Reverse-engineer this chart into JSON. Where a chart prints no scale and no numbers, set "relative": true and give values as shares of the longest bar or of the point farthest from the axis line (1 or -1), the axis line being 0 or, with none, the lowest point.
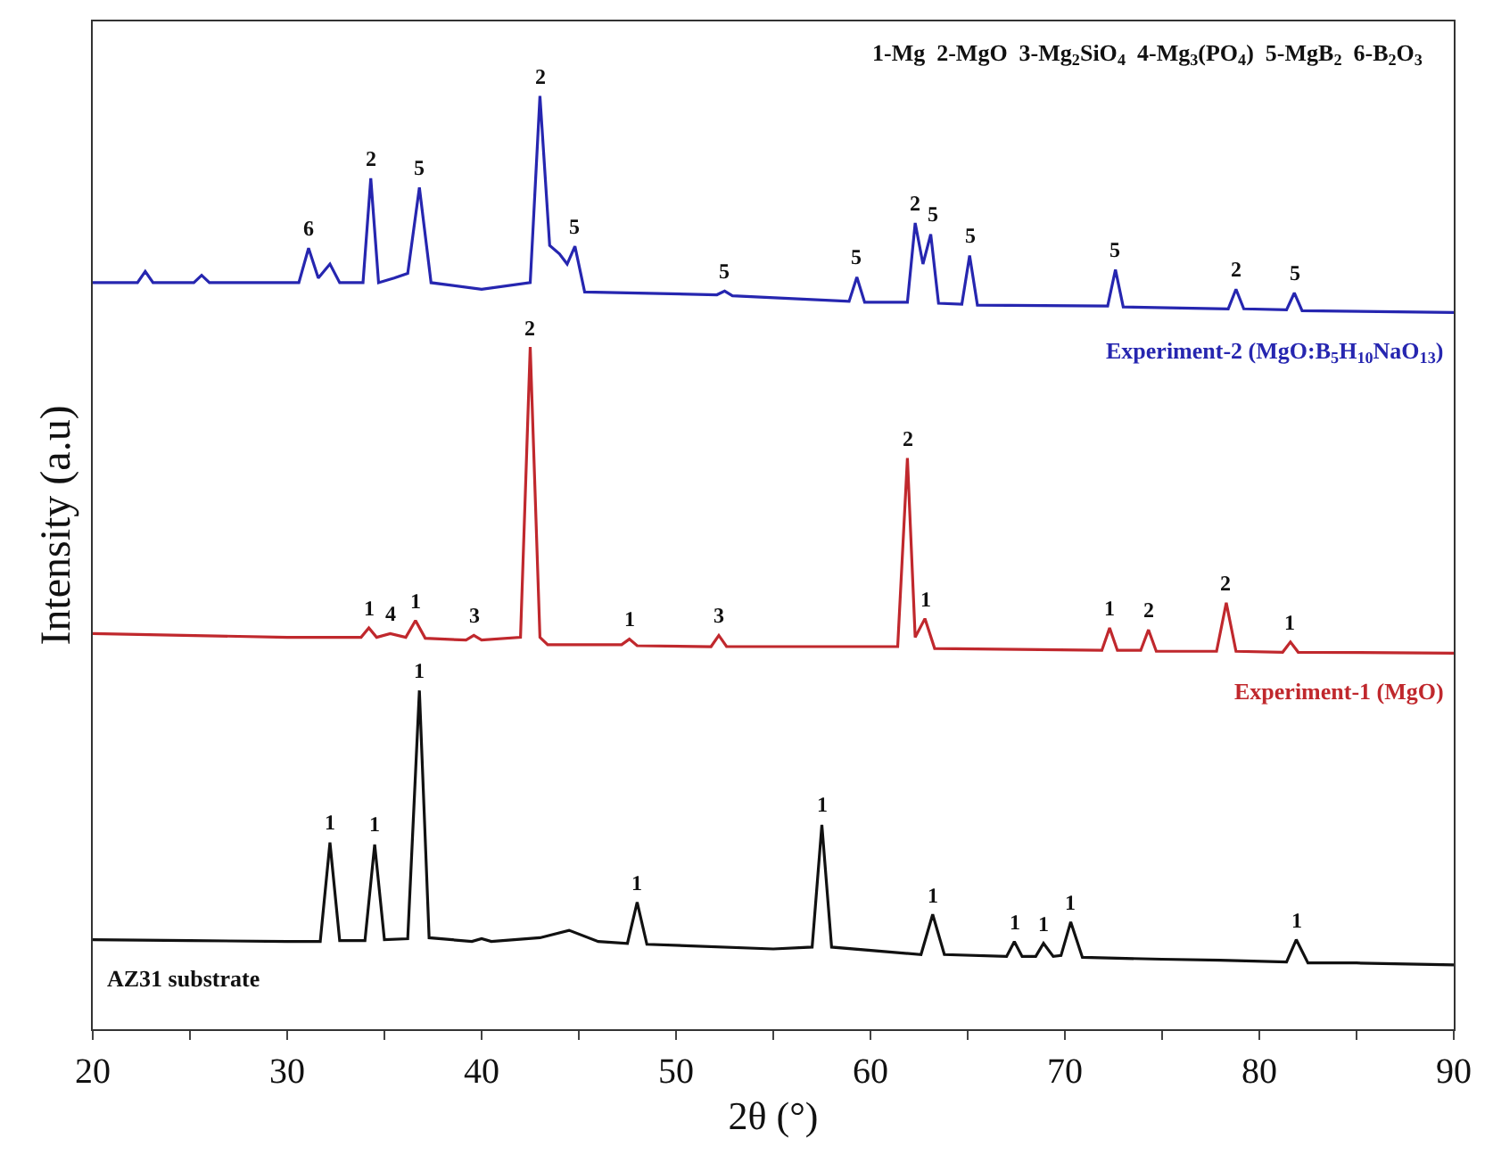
{
  "chart_data": {
    "type": "line",
    "relative": true,
    "xlabel": "2θ (°)",
    "ylabel": "Intensity (a.u)",
    "xlim": [
      20,
      90
    ],
    "xticks": [
      20,
      {
        "value": 25,
        "label": null
      },
      30,
      {
        "value": 35,
        "label": null
      },
      40,
      {
        "value": 45,
        "label": null
      },
      50,
      {
        "value": 55,
        "label": null
      },
      60,
      {
        "value": 65,
        "label": null
      },
      70,
      {
        "value": 75,
        "label": null
      },
      80,
      {
        "value": 85,
        "label": null
      },
      90
    ],
    "grid": false,
    "legend": false,
    "marker": "none",
    "line_style": "solid",
    "series": [
      {
        "name": "Experiment-2 (MgO:B$_{5}$H$_{10}$NaO$_{13}$)",
        "color": "#2626b0",
        "x": [
          20,
          22.3,
          22.7,
          23.1,
          25.2,
          25.6,
          26,
          30.6,
          31.1,
          31.6,
          32.2,
          32.7,
          33.9,
          34.3,
          34.7,
          35.5,
          36.2,
          36.8,
          37.4,
          40,
          42.5,
          43.0,
          43.5,
          44.0,
          44.4,
          44.8,
          45.3,
          52.1,
          52.5,
          52.9,
          58.9,
          59.3,
          59.7,
          61.9,
          62.3,
          62.7,
          63.1,
          63.5,
          64.7,
          65.1,
          65.5,
          72.2,
          72.6,
          73.0,
          78.4,
          78.8,
          79.2,
          81.4,
          81.8,
          82.2,
          90
        ],
        "values": [
          0.8,
          0.8,
          0.812,
          0.8,
          0.8,
          0.808,
          0.8,
          0.8,
          0.837,
          0.805,
          0.82,
          0.8,
          0.8,
          0.912,
          0.8,
          0.805,
          0.81,
          0.902,
          0.8,
          0.793,
          0.8,
          1.0,
          0.84,
          0.831,
          0.82,
          0.839,
          0.79,
          0.787,
          0.791,
          0.786,
          0.78,
          0.806,
          0.779,
          0.779,
          0.864,
          0.82,
          0.852,
          0.778,
          0.777,
          0.829,
          0.776,
          0.775,
          0.814,
          0.774,
          0.772,
          0.793,
          0.772,
          0.771,
          0.789,
          0.77,
          0.768
        ]
      },
      {
        "name": "Experiment-1 (MgO)",
        "color": "#c0282d",
        "x": [
          20,
          30,
          33.8,
          34.2,
          34.6,
          35.3,
          36.1,
          36.6,
          37.1,
          39.2,
          39.6,
          40.0,
          42.0,
          42.5,
          43.0,
          43.4,
          47.2,
          47.6,
          48.0,
          51.8,
          52.2,
          52.6,
          61.4,
          61.9,
          62.3,
          62.8,
          63.3,
          71.9,
          72.3,
          72.7,
          73.9,
          74.3,
          74.7,
          77.8,
          78.3,
          78.8,
          81.2,
          81.6,
          82.0,
          90
        ],
        "values": [
          0.424,
          0.42,
          0.42,
          0.43,
          0.42,
          0.424,
          0.42,
          0.438,
          0.419,
          0.417,
          0.422,
          0.417,
          0.42,
          0.731,
          0.42,
          0.412,
          0.412,
          0.418,
          0.411,
          0.41,
          0.422,
          0.41,
          0.41,
          0.612,
          0.42,
          0.44,
          0.408,
          0.406,
          0.43,
          0.406,
          0.406,
          0.428,
          0.405,
          0.405,
          0.457,
          0.405,
          0.404,
          0.415,
          0.404,
          0.403
        ]
      },
      {
        "name": "AZ31 substrate",
        "color": "#111111",
        "x": [
          20,
          25,
          30,
          31.7,
          32.2,
          32.7,
          34.0,
          34.5,
          35.0,
          36.2,
          36.8,
          37.3,
          39.5,
          40.0,
          40.5,
          43.0,
          44.5,
          46.0,
          47.5,
          48.0,
          48.5,
          55,
          57.0,
          57.5,
          58.0,
          62.6,
          63.2,
          63.8,
          67.0,
          67.4,
          67.8,
          68.5,
          68.9,
          69.4,
          69.8,
          70.3,
          70.9,
          75,
          78,
          81.4,
          81.9,
          82.5,
          85,
          90
        ],
        "values": [
          0.096,
          0.095,
          0.094,
          0.094,
          0.2,
          0.095,
          0.095,
          0.198,
          0.096,
          0.097,
          0.363,
          0.098,
          0.094,
          0.097,
          0.094,
          0.098,
          0.106,
          0.094,
          0.092,
          0.136,
          0.091,
          0.086,
          0.088,
          0.219,
          0.088,
          0.08,
          0.123,
          0.08,
          0.078,
          0.094,
          0.078,
          0.078,
          0.092,
          0.078,
          0.079,
          0.115,
          0.077,
          0.075,
          0.074,
          0.072,
          0.096,
          0.071,
          0.071,
          0.069
        ]
      }
    ],
    "annotations": [
      "1-Mg  2-MgO  3-Mg$_{2}$SiO$_{4}$  4-Mg$_{3}$(PO$_{4}$)  5-MgB$_{2}$  6-B$_{2}$O$_{3}$",
      {
        "text": "6",
        "x": 31.1,
        "y": 0.837
      },
      {
        "text": "2",
        "x": 34.3,
        "y": 0.912
      },
      {
        "text": "5",
        "x": 36.8,
        "y": 0.902
      },
      {
        "text": "2",
        "x": 43.0,
        "y": 1.0
      },
      {
        "text": "5",
        "x": 44.8,
        "y": 0.839
      },
      {
        "text": "5",
        "x": 52.5,
        "y": 0.791
      },
      {
        "text": "5",
        "x": 59.3,
        "y": 0.806
      },
      {
        "text": "2",
        "x": 62.3,
        "y": 0.864
      },
      {
        "text": "5",
        "x": 63.2,
        "y": 0.852
      },
      {
        "text": "5",
        "x": 65.1,
        "y": 0.829
      },
      {
        "text": "5",
        "x": 72.6,
        "y": 0.814
      },
      {
        "text": "2",
        "x": 78.8,
        "y": 0.793
      },
      {
        "text": "5",
        "x": 81.8,
        "y": 0.789
      },
      {
        "text": "1",
        "x": 34.2,
        "y": 0.43
      },
      {
        "text": "4",
        "x": 35.3,
        "y": 0.424
      },
      {
        "text": "1",
        "x": 36.6,
        "y": 0.438
      },
      {
        "text": "3",
        "x": 39.6,
        "y": 0.422
      },
      {
        "text": "2",
        "x": 42.5,
        "y": 0.731
      },
      {
        "text": "1",
        "x": 47.6,
        "y": 0.418
      },
      {
        "text": "3",
        "x": 52.2,
        "y": 0.422
      },
      {
        "text": "2",
        "x": 61.9,
        "y": 0.612
      },
      {
        "text": "1",
        "x": 62.8,
        "y": 0.44
      },
      {
        "text": "1",
        "x": 72.3,
        "y": 0.43
      },
      {
        "text": "2",
        "x": 74.3,
        "y": 0.428
      },
      {
        "text": "2",
        "x": 78.3,
        "y": 0.457
      },
      {
        "text": "1",
        "x": 81.6,
        "y": 0.415
      },
      {
        "text": "1",
        "x": 32.2,
        "y": 0.2
      },
      {
        "text": "1",
        "x": 34.5,
        "y": 0.198
      },
      {
        "text": "1",
        "x": 36.8,
        "y": 0.363
      },
      {
        "text": "1",
        "x": 48.0,
        "y": 0.136
      },
      {
        "text": "1",
        "x": 57.5,
        "y": 0.219
      },
      {
        "text": "1",
        "x": 63.2,
        "y": 0.123
      },
      {
        "text": "1",
        "x": 67.4,
        "y": 0.094
      },
      {
        "text": "1",
        "x": 68.9,
        "y": 0.092
      },
      {
        "text": "1",
        "x": 70.3,
        "y": 0.115
      },
      {
        "text": "1",
        "x": 81.9,
        "y": 0.096
      }
    ]
  }
}
